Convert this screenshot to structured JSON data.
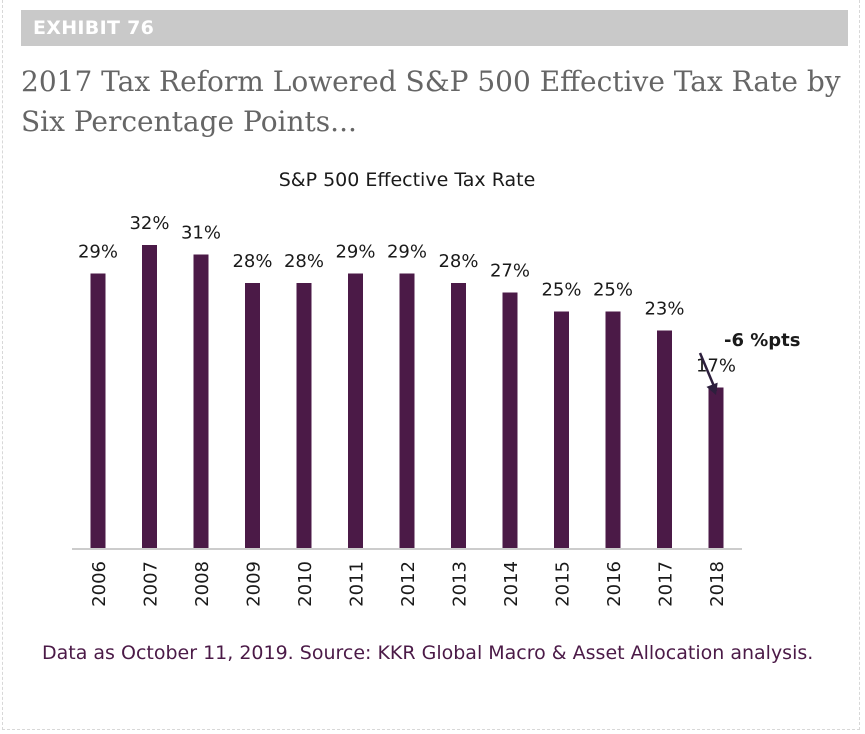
{
  "exhibit": {
    "label": "EXHIBIT 76"
  },
  "headline": "2017 Tax Reform Lowered S&P 500 Effective Tax Rate by Six Percentage Points...",
  "footnote": "Data as October 11, 2019. Source: KKR Global Macro & Asset Allocation analysis.",
  "colors": {
    "bar": "#4b1a47",
    "text": "#1a1a1a",
    "axis": "#cccccc",
    "exhibit_bar": "#c9c9c9"
  },
  "chart_data": {
    "type": "bar",
    "title": "S&P 500 Effective Tax Rate",
    "categories": [
      "2006",
      "2007",
      "2008",
      "2009",
      "2010",
      "2011",
      "2012",
      "2013",
      "2014",
      "2015",
      "2016",
      "2017",
      "2018"
    ],
    "values": [
      29,
      32,
      31,
      28,
      28,
      29,
      29,
      28,
      27,
      25,
      25,
      23,
      17
    ],
    "data_labels": [
      "29%",
      "32%",
      "31%",
      "28%",
      "28%",
      "29%",
      "29%",
      "28%",
      "27%",
      "25%",
      "25%",
      "23%",
      "17%"
    ],
    "ylim": [
      0,
      32
    ],
    "grid": false,
    "annotation": {
      "text": "-6 %pts",
      "from_category": "2017",
      "to_category": "2018"
    }
  }
}
